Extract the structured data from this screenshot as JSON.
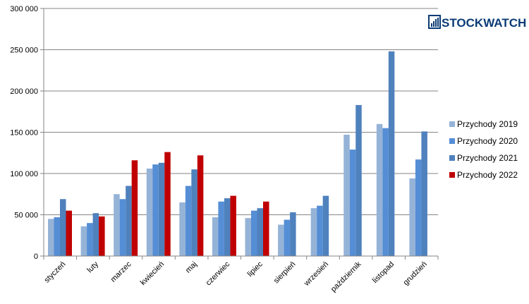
{
  "logo": {
    "text": "STOCKWATCH",
    "icon": "stockwatch-chart-icon"
  },
  "chart_data": {
    "type": "bar",
    "title": "",
    "xlabel": "",
    "ylabel": "",
    "ylim": [
      0,
      300000
    ],
    "yticks": [
      "0",
      "50 000",
      "100 000",
      "150 000",
      "200 000",
      "250 000",
      "300 000"
    ],
    "grid": true,
    "legend_position": "right",
    "categories": [
      "styczeń",
      "luty",
      "marzec",
      "kwiecień",
      "maj",
      "czerwiec",
      "lipiec",
      "sierpień",
      "wrzesień",
      "październik",
      "listopad",
      "grudzień"
    ],
    "series": [
      {
        "name": "Przychody 2019",
        "color": "#95b3d7",
        "values": [
          45000,
          36000,
          75000,
          106000,
          65000,
          47000,
          46000,
          38000,
          58000,
          147000,
          160000,
          94000
        ]
      },
      {
        "name": "Przychody 2020",
        "color": "#558ed5",
        "values": [
          47000,
          40000,
          69000,
          111000,
          85000,
          66000,
          55000,
          44000,
          61000,
          129000,
          155000,
          117000
        ]
      },
      {
        "name": "Przychody 2021",
        "color": "#4f81bd",
        "values": [
          69000,
          52000,
          85000,
          113000,
          105000,
          70000,
          58000,
          53000,
          73000,
          183000,
          248000,
          151000
        ]
      },
      {
        "name": "Przychody 2022",
        "color": "#c00000",
        "values": [
          55000,
          48000,
          116000,
          126000,
          122000,
          73000,
          66000,
          null,
          null,
          null,
          null,
          null
        ]
      }
    ]
  }
}
